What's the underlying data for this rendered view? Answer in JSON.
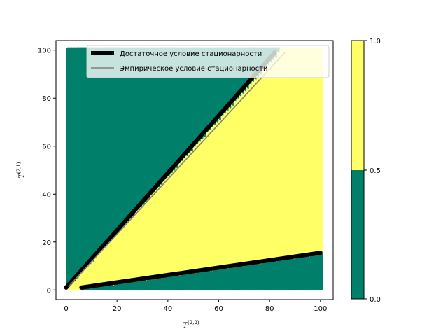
{
  "chart_data": {
    "type": "scatter",
    "title": "",
    "xlabel": "T",
    "xlabel_sup": "(2,2)",
    "ylabel": "T",
    "ylabel_sup": "(2,1)",
    "xlim": [
      -4,
      105
    ],
    "ylim": [
      -4,
      104
    ],
    "xticks": [
      0,
      20,
      40,
      60,
      80,
      100
    ],
    "yticks": [
      0,
      20,
      40,
      60,
      80,
      100
    ],
    "grid": false,
    "legend_position": "top-right",
    "region_colors": {
      "low": "#00806a",
      "high": "#ffff66"
    },
    "series": [
      {
        "name": "Достаточное условие стационарности",
        "color": "#000000",
        "segments": [
          {
            "x": [
              0,
              82
            ],
            "y": [
              1,
              99
            ]
          },
          {
            "x": [
              6,
              100
            ],
            "y": [
              1,
              15.5
            ]
          }
        ]
      },
      {
        "name": "Эмпирическое условие стационарности",
        "color": "#808080",
        "segments": [
          {
            "x": [
              1,
              86
            ],
            "y": [
              1.5,
              99
            ]
          }
        ]
      }
    ],
    "grid_points": {
      "x_range": [
        1,
        100
      ],
      "y_range": [
        1,
        100
      ],
      "value_rule": "1 if 0.155*x < y < 1.18*x else 0"
    },
    "colorbar": {
      "ticks": [
        "0.0",
        "0.5",
        "1.0"
      ],
      "levels": [
        0,
        0.5,
        1.0
      ]
    }
  }
}
